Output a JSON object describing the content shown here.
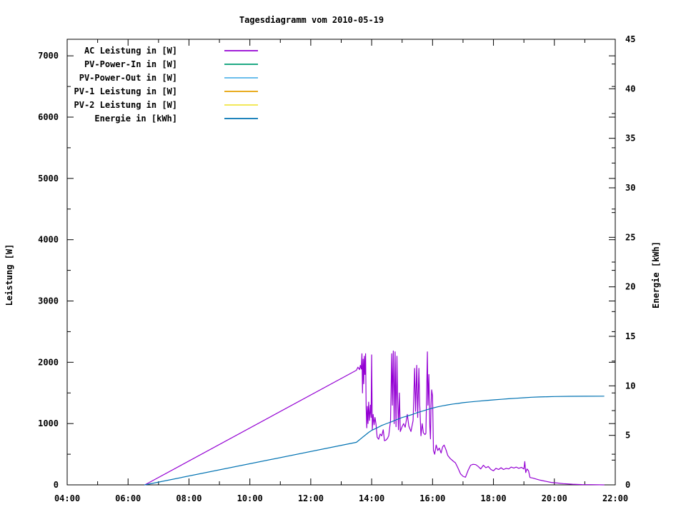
{
  "accent_colors": {
    "ac": "#9400d3",
    "pv_in": "#009e73",
    "pv_out": "#56b4e9",
    "pv1": "#e69f00",
    "pv2": "#f0e442",
    "energie": "#0072b2",
    "frame": "#000000",
    "background": "#ffffff"
  },
  "chart_data": {
    "type": "line",
    "title": "Tagesdiagramm vom 2010-05-19",
    "ylabel_left": "Leistung [W]",
    "ylabel_right": "Energie [kWh]",
    "grid": false,
    "legend_position": "top-left-inside",
    "x_axis": {
      "unit": "time",
      "range_hours": [
        4,
        22
      ],
      "major_tick_step_hours": 2,
      "minor_tick_step_hours": 1,
      "tick_labels": [
        "04:00",
        "06:00",
        "08:00",
        "10:00",
        "12:00",
        "14:00",
        "16:00",
        "18:00",
        "20:00",
        "22:00"
      ]
    },
    "y_left_axis": {
      "range": [
        0,
        7270
      ],
      "major_tick_step": 1000,
      "minor_tick_step": 500,
      "tick_labels": [
        "0",
        "1000",
        "2000",
        "3000",
        "4000",
        "5000",
        "6000",
        "7000"
      ]
    },
    "y_right_axis": {
      "range": [
        0,
        45
      ],
      "major_tick_step": 5,
      "minor_tick_step": 2.5,
      "tick_labels": [
        "0",
        "5",
        "10",
        "15",
        "20",
        "25",
        "30",
        "35",
        "40",
        "45"
      ]
    },
    "series": [
      {
        "name": "AC Leistung in [W]",
        "color": "#9400d3",
        "axis": "left",
        "points": [
          [
            6.55,
            0
          ],
          [
            13.5,
            1870
          ],
          [
            13.55,
            1920
          ],
          [
            13.6,
            1880
          ],
          [
            13.63,
            1950
          ],
          [
            13.66,
            1890
          ],
          [
            13.68,
            2140
          ],
          [
            13.7,
            1500
          ],
          [
            13.72,
            2050
          ],
          [
            13.74,
            1650
          ],
          [
            13.76,
            2100
          ],
          [
            13.78,
            1800
          ],
          [
            13.8,
            2140
          ],
          [
            13.82,
            1250
          ],
          [
            13.84,
            930
          ],
          [
            13.86,
            1280
          ],
          [
            13.88,
            1000
          ],
          [
            13.9,
            1350
          ],
          [
            13.93,
            1050
          ],
          [
            13.96,
            1300
          ],
          [
            13.98,
            1100
          ],
          [
            14.0,
            2120
          ],
          [
            14.02,
            900
          ],
          [
            14.05,
            1150
          ],
          [
            14.08,
            980
          ],
          [
            14.11,
            1100
          ],
          [
            14.14,
            1000
          ],
          [
            14.18,
            780
          ],
          [
            14.23,
            745
          ],
          [
            14.28,
            830
          ],
          [
            14.33,
            800
          ],
          [
            14.38,
            900
          ],
          [
            14.42,
            720
          ],
          [
            14.47,
            730
          ],
          [
            14.52,
            760
          ],
          [
            14.56,
            800
          ],
          [
            14.62,
            1050
          ],
          [
            14.66,
            2140
          ],
          [
            14.68,
            1300
          ],
          [
            14.71,
            2185
          ],
          [
            14.74,
            1000
          ],
          [
            14.77,
            2170
          ],
          [
            14.8,
            950
          ],
          [
            14.83,
            2100
          ],
          [
            14.85,
            1500
          ],
          [
            14.88,
            900
          ],
          [
            14.91,
            1500
          ],
          [
            14.94,
            870
          ],
          [
            15.0,
            950
          ],
          [
            15.05,
            1000
          ],
          [
            15.1,
            940
          ],
          [
            15.17,
            1150
          ],
          [
            15.22,
            960
          ],
          [
            15.29,
            870
          ],
          [
            15.36,
            1050
          ],
          [
            15.41,
            1900
          ],
          [
            15.44,
            1200
          ],
          [
            15.48,
            1950
          ],
          [
            15.51,
            1100
          ],
          [
            15.55,
            1900
          ],
          [
            15.58,
            1300
          ],
          [
            15.62,
            800
          ],
          [
            15.66,
            1000
          ],
          [
            15.7,
            850
          ],
          [
            15.75,
            820
          ],
          [
            15.78,
            840
          ],
          [
            15.83,
            2170
          ],
          [
            15.85,
            1300
          ],
          [
            15.88,
            1800
          ],
          [
            15.91,
            950
          ],
          [
            15.93,
            750
          ],
          [
            15.95,
            1300
          ],
          [
            15.97,
            1550
          ],
          [
            16.0,
            1450
          ],
          [
            16.03,
            560
          ],
          [
            16.07,
            500
          ],
          [
            16.12,
            650
          ],
          [
            16.17,
            560
          ],
          [
            16.22,
            600
          ],
          [
            16.28,
            520
          ],
          [
            16.33,
            620
          ],
          [
            16.38,
            650
          ],
          [
            16.45,
            560
          ],
          [
            16.5,
            480
          ],
          [
            16.58,
            430
          ],
          [
            16.67,
            390
          ],
          [
            16.75,
            360
          ],
          [
            16.83,
            280
          ],
          [
            16.92,
            180
          ],
          [
            17.0,
            140
          ],
          [
            17.08,
            125
          ],
          [
            17.17,
            240
          ],
          [
            17.25,
            320
          ],
          [
            17.33,
            335
          ],
          [
            17.42,
            330
          ],
          [
            17.5,
            300
          ],
          [
            17.58,
            260
          ],
          [
            17.67,
            320
          ],
          [
            17.75,
            280
          ],
          [
            17.83,
            300
          ],
          [
            17.92,
            250
          ],
          [
            18.0,
            230
          ],
          [
            18.08,
            270
          ],
          [
            18.17,
            250
          ],
          [
            18.25,
            280
          ],
          [
            18.33,
            250
          ],
          [
            18.42,
            270
          ],
          [
            18.5,
            260
          ],
          [
            18.58,
            290
          ],
          [
            18.67,
            275
          ],
          [
            18.75,
            290
          ],
          [
            18.83,
            270
          ],
          [
            18.92,
            285
          ],
          [
            19.0,
            260
          ],
          [
            19.03,
            380
          ],
          [
            19.06,
            200
          ],
          [
            19.1,
            260
          ],
          [
            19.15,
            230
          ],
          [
            19.2,
            120
          ],
          [
            19.3,
            110
          ],
          [
            19.4,
            95
          ],
          [
            19.5,
            80
          ],
          [
            19.6,
            70
          ],
          [
            19.75,
            55
          ],
          [
            19.9,
            40
          ],
          [
            20.1,
            30
          ],
          [
            20.3,
            20
          ],
          [
            20.6,
            10
          ],
          [
            20.9,
            5
          ],
          [
            21.2,
            3
          ],
          [
            21.63,
            0
          ]
        ]
      },
      {
        "name": "PV-Power-In in [W]",
        "color": "#009e73",
        "axis": "left",
        "points": []
      },
      {
        "name": "PV-Power-Out in [W]",
        "color": "#56b4e9",
        "axis": "left",
        "points": []
      },
      {
        "name": "PV-1 Leistung in [W]",
        "color": "#e69f00",
        "axis": "left",
        "points": []
      },
      {
        "name": "PV-2 Leistung in [W]",
        "color": "#f0e442",
        "axis": "left",
        "points": []
      },
      {
        "name": "Energie in [kWh]",
        "color": "#0072b2",
        "axis": "right",
        "points": [
          [
            6.55,
            0
          ],
          [
            13.5,
            4.3
          ],
          [
            13.6,
            4.55
          ],
          [
            13.7,
            4.8
          ],
          [
            13.8,
            5.05
          ],
          [
            13.9,
            5.3
          ],
          [
            14.0,
            5.5
          ],
          [
            14.17,
            5.75
          ],
          [
            14.33,
            6.0
          ],
          [
            14.5,
            6.2
          ],
          [
            14.67,
            6.4
          ],
          [
            14.83,
            6.6
          ],
          [
            15.0,
            6.8
          ],
          [
            15.17,
            6.95
          ],
          [
            15.33,
            7.1
          ],
          [
            15.5,
            7.3
          ],
          [
            15.67,
            7.45
          ],
          [
            15.83,
            7.6
          ],
          [
            16.0,
            7.75
          ],
          [
            16.17,
            7.88
          ],
          [
            16.33,
            7.98
          ],
          [
            16.5,
            8.08
          ],
          [
            16.67,
            8.16
          ],
          [
            16.83,
            8.22
          ],
          [
            17.0,
            8.3
          ],
          [
            17.25,
            8.38
          ],
          [
            17.5,
            8.45
          ],
          [
            17.75,
            8.52
          ],
          [
            18.0,
            8.58
          ],
          [
            18.25,
            8.64
          ],
          [
            18.5,
            8.7
          ],
          [
            18.75,
            8.75
          ],
          [
            19.0,
            8.8
          ],
          [
            19.25,
            8.85
          ],
          [
            19.5,
            8.88
          ],
          [
            19.75,
            8.9
          ],
          [
            20.0,
            8.92
          ],
          [
            20.5,
            8.94
          ],
          [
            21.0,
            8.95
          ],
          [
            21.63,
            8.96
          ]
        ]
      }
    ]
  }
}
